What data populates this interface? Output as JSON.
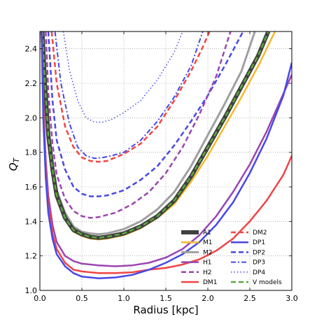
{
  "chart_data": {
    "type": "line",
    "title": "",
    "xlabel": "Radius [kpc]",
    "ylabel": "Q_T",
    "xlim": [
      0.0,
      3.0
    ],
    "ylim": [
      1.0,
      2.5
    ],
    "xticks": [
      0.0,
      0.5,
      1.0,
      1.5,
      2.0,
      2.5,
      3.0
    ],
    "xtick_labels": [
      "0.0",
      "0.5",
      "1.0",
      "1.5",
      "2.0",
      "2.5",
      "3.0"
    ],
    "yticks": [
      1.0,
      1.2,
      1.4,
      1.6,
      1.8,
      2.0,
      2.2,
      2.4
    ],
    "ytick_labels": [
      "1.0",
      "1.2",
      "1.4",
      "1.6",
      "1.8",
      "2.0",
      "2.2",
      "2.4"
    ],
    "grid": true,
    "legend_position": "bottom-right",
    "series": [
      {
        "name": "A1",
        "color": "#404040",
        "width": 6,
        "dash": "solid",
        "points": [
          [
            0.03,
            2.5
          ],
          [
            0.06,
            2.2
          ],
          [
            0.1,
            1.9
          ],
          [
            0.15,
            1.7
          ],
          [
            0.2,
            1.55
          ],
          [
            0.3,
            1.42
          ],
          [
            0.4,
            1.35
          ],
          [
            0.5,
            1.325
          ],
          [
            0.6,
            1.31
          ],
          [
            0.7,
            1.305
          ],
          [
            0.8,
            1.31
          ],
          [
            1.0,
            1.33
          ],
          [
            1.2,
            1.37
          ],
          [
            1.4,
            1.43
          ],
          [
            1.6,
            1.52
          ],
          [
            1.8,
            1.66
          ],
          [
            2.0,
            1.83
          ],
          [
            2.2,
            2.0
          ],
          [
            2.4,
            2.18
          ],
          [
            2.6,
            2.36
          ],
          [
            2.72,
            2.5
          ]
        ]
      },
      {
        "name": "M1",
        "color": "#f5b82e",
        "width": 2.5,
        "dash": "solid",
        "points": [
          [
            0.03,
            2.5
          ],
          [
            0.06,
            2.18
          ],
          [
            0.1,
            1.88
          ],
          [
            0.15,
            1.68
          ],
          [
            0.2,
            1.54
          ],
          [
            0.3,
            1.41
          ],
          [
            0.4,
            1.34
          ],
          [
            0.5,
            1.315
          ],
          [
            0.6,
            1.3
          ],
          [
            0.7,
            1.295
          ],
          [
            0.8,
            1.3
          ],
          [
            1.0,
            1.32
          ],
          [
            1.2,
            1.36
          ],
          [
            1.4,
            1.42
          ],
          [
            1.6,
            1.5
          ],
          [
            1.8,
            1.63
          ],
          [
            2.0,
            1.78
          ],
          [
            2.2,
            1.95
          ],
          [
            2.4,
            2.12
          ],
          [
            2.6,
            2.3
          ],
          [
            2.8,
            2.5
          ]
        ]
      },
      {
        "name": "M2",
        "color": "#a0a0a0",
        "width": 3,
        "dash": "solid",
        "points": [
          [
            0.03,
            2.5
          ],
          [
            0.06,
            2.23
          ],
          [
            0.1,
            1.93
          ],
          [
            0.15,
            1.73
          ],
          [
            0.2,
            1.58
          ],
          [
            0.3,
            1.45
          ],
          [
            0.4,
            1.37
          ],
          [
            0.5,
            1.34
          ],
          [
            0.6,
            1.33
          ],
          [
            0.7,
            1.325
          ],
          [
            0.8,
            1.33
          ],
          [
            1.0,
            1.355
          ],
          [
            1.2,
            1.4
          ],
          [
            1.4,
            1.47
          ],
          [
            1.6,
            1.57
          ],
          [
            1.8,
            1.72
          ],
          [
            2.0,
            1.9
          ],
          [
            2.2,
            2.08
          ],
          [
            2.4,
            2.27
          ],
          [
            2.56,
            2.5
          ]
        ]
      },
      {
        "name": "H1",
        "color": "#9b45b0",
        "width": 2.5,
        "dash": "solid",
        "points": [
          [
            0.02,
            2.5
          ],
          [
            0.04,
            2.1
          ],
          [
            0.07,
            1.75
          ],
          [
            0.1,
            1.55
          ],
          [
            0.15,
            1.38
          ],
          [
            0.2,
            1.28
          ],
          [
            0.3,
            1.2
          ],
          [
            0.4,
            1.17
          ],
          [
            0.5,
            1.155
          ],
          [
            0.7,
            1.145
          ],
          [
            0.9,
            1.14
          ],
          [
            1.1,
            1.145
          ],
          [
            1.3,
            1.16
          ],
          [
            1.5,
            1.19
          ],
          [
            1.7,
            1.24
          ],
          [
            1.9,
            1.32
          ],
          [
            2.1,
            1.43
          ],
          [
            2.3,
            1.57
          ],
          [
            2.5,
            1.73
          ],
          [
            2.7,
            1.92
          ],
          [
            2.9,
            2.14
          ],
          [
            3.0,
            2.25
          ]
        ]
      },
      {
        "name": "H2",
        "color": "#9b45b0",
        "width": 2.5,
        "dash": "dash",
        "points": [
          [
            0.07,
            2.5
          ],
          [
            0.1,
            2.15
          ],
          [
            0.15,
            1.85
          ],
          [
            0.2,
            1.67
          ],
          [
            0.3,
            1.53
          ],
          [
            0.4,
            1.46
          ],
          [
            0.5,
            1.43
          ],
          [
            0.6,
            1.42
          ],
          [
            0.7,
            1.425
          ],
          [
            0.9,
            1.45
          ],
          [
            1.1,
            1.5
          ],
          [
            1.3,
            1.57
          ],
          [
            1.5,
            1.68
          ],
          [
            1.7,
            1.83
          ],
          [
            1.9,
            2.02
          ],
          [
            2.1,
            2.24
          ],
          [
            2.27,
            2.5
          ]
        ]
      },
      {
        "name": "DM1",
        "color": "#f04545",
        "width": 2.5,
        "dash": "solid",
        "points": [
          [
            0.02,
            2.5
          ],
          [
            0.04,
            2.05
          ],
          [
            0.07,
            1.7
          ],
          [
            0.1,
            1.5
          ],
          [
            0.15,
            1.33
          ],
          [
            0.2,
            1.24
          ],
          [
            0.3,
            1.16
          ],
          [
            0.4,
            1.12
          ],
          [
            0.5,
            1.11
          ],
          [
            0.7,
            1.1
          ],
          [
            0.9,
            1.1
          ],
          [
            1.1,
            1.105
          ],
          [
            1.3,
            1.12
          ],
          [
            1.5,
            1.13
          ],
          [
            1.7,
            1.15
          ],
          [
            1.9,
            1.18
          ],
          [
            2.1,
            1.23
          ],
          [
            2.3,
            1.3
          ],
          [
            2.5,
            1.4
          ],
          [
            2.7,
            1.52
          ],
          [
            2.9,
            1.67
          ],
          [
            3.0,
            1.78
          ]
        ]
      },
      {
        "name": "DM2",
        "color": "#f04545",
        "width": 2.5,
        "dash": "dash",
        "points": [
          [
            0.14,
            2.5
          ],
          [
            0.2,
            2.2
          ],
          [
            0.3,
            1.95
          ],
          [
            0.4,
            1.83
          ],
          [
            0.5,
            1.77
          ],
          [
            0.6,
            1.75
          ],
          [
            0.7,
            1.745
          ],
          [
            0.8,
            1.75
          ],
          [
            1.0,
            1.79
          ],
          [
            1.2,
            1.85
          ],
          [
            1.4,
            1.95
          ],
          [
            1.6,
            2.1
          ],
          [
            1.8,
            2.27
          ],
          [
            1.95,
            2.42
          ],
          [
            2.02,
            2.5
          ]
        ]
      },
      {
        "name": "DP1",
        "color": "#4848e8",
        "width": 2.5,
        "dash": "solid",
        "points": [
          [
            0.02,
            2.5
          ],
          [
            0.04,
            2.0
          ],
          [
            0.07,
            1.65
          ],
          [
            0.1,
            1.45
          ],
          [
            0.15,
            1.3
          ],
          [
            0.2,
            1.21
          ],
          [
            0.3,
            1.14
          ],
          [
            0.4,
            1.1
          ],
          [
            0.5,
            1.08
          ],
          [
            0.7,
            1.07
          ],
          [
            0.9,
            1.075
          ],
          [
            1.1,
            1.09
          ],
          [
            1.3,
            1.12
          ],
          [
            1.5,
            1.16
          ],
          [
            1.7,
            1.21
          ],
          [
            1.9,
            1.28
          ],
          [
            2.1,
            1.38
          ],
          [
            2.3,
            1.51
          ],
          [
            2.5,
            1.68
          ],
          [
            2.7,
            1.88
          ],
          [
            2.9,
            2.13
          ],
          [
            3.0,
            2.32
          ]
        ]
      },
      {
        "name": "DP2",
        "color": "#4848e8",
        "width": 2.5,
        "dash": "dash",
        "points": [
          [
            0.1,
            2.5
          ],
          [
            0.15,
            2.1
          ],
          [
            0.2,
            1.87
          ],
          [
            0.3,
            1.7
          ],
          [
            0.4,
            1.6
          ],
          [
            0.5,
            1.56
          ],
          [
            0.6,
            1.545
          ],
          [
            0.7,
            1.545
          ],
          [
            0.8,
            1.55
          ],
          [
            1.0,
            1.58
          ],
          [
            1.2,
            1.64
          ],
          [
            1.4,
            1.72
          ],
          [
            1.6,
            1.84
          ],
          [
            1.8,
            1.98
          ],
          [
            2.0,
            2.13
          ],
          [
            2.2,
            2.3
          ],
          [
            2.42,
            2.5
          ]
        ]
      },
      {
        "name": "DP3",
        "color": "#4848e8",
        "width": 2,
        "dash": "dashdot",
        "points": [
          [
            0.18,
            2.5
          ],
          [
            0.25,
            2.2
          ],
          [
            0.35,
            1.97
          ],
          [
            0.45,
            1.83
          ],
          [
            0.55,
            1.78
          ],
          [
            0.65,
            1.765
          ],
          [
            0.75,
            1.77
          ],
          [
            0.85,
            1.78
          ],
          [
            1.0,
            1.8
          ],
          [
            1.2,
            1.87
          ],
          [
            1.4,
            1.98
          ],
          [
            1.6,
            2.12
          ],
          [
            1.8,
            2.3
          ],
          [
            1.94,
            2.5
          ]
        ]
      },
      {
        "name": "DP4",
        "color": "#4848e8",
        "width": 1.5,
        "dash": "dot",
        "points": [
          [
            0.28,
            2.5
          ],
          [
            0.35,
            2.28
          ],
          [
            0.45,
            2.1
          ],
          [
            0.55,
            2.0
          ],
          [
            0.65,
            1.975
          ],
          [
            0.75,
            1.975
          ],
          [
            0.85,
            1.99
          ],
          [
            1.0,
            2.03
          ],
          [
            1.2,
            2.1
          ],
          [
            1.4,
            2.22
          ],
          [
            1.6,
            2.38
          ],
          [
            1.7,
            2.5
          ]
        ]
      },
      {
        "name": "V models",
        "color": "#5aa83c",
        "width": 2.5,
        "dash": "dash",
        "points": [
          [
            0.03,
            2.5
          ],
          [
            0.06,
            2.2
          ],
          [
            0.1,
            1.9
          ],
          [
            0.15,
            1.7
          ],
          [
            0.2,
            1.55
          ],
          [
            0.3,
            1.42
          ],
          [
            0.4,
            1.35
          ],
          [
            0.5,
            1.325
          ],
          [
            0.6,
            1.31
          ],
          [
            0.7,
            1.305
          ],
          [
            0.8,
            1.31
          ],
          [
            1.0,
            1.33
          ],
          [
            1.2,
            1.37
          ],
          [
            1.4,
            1.43
          ],
          [
            1.6,
            1.52
          ],
          [
            1.8,
            1.66
          ],
          [
            2.0,
            1.83
          ],
          [
            2.2,
            2.0
          ],
          [
            2.4,
            2.18
          ],
          [
            2.6,
            2.36
          ],
          [
            2.72,
            2.5
          ]
        ]
      }
    ],
    "legend_left": [
      "A1",
      "M1",
      "M2",
      "H1",
      "H2",
      "DM1"
    ],
    "legend_right": [
      "DM2",
      "DP1",
      "DP2",
      "DP3",
      "DP4",
      "V models"
    ]
  }
}
